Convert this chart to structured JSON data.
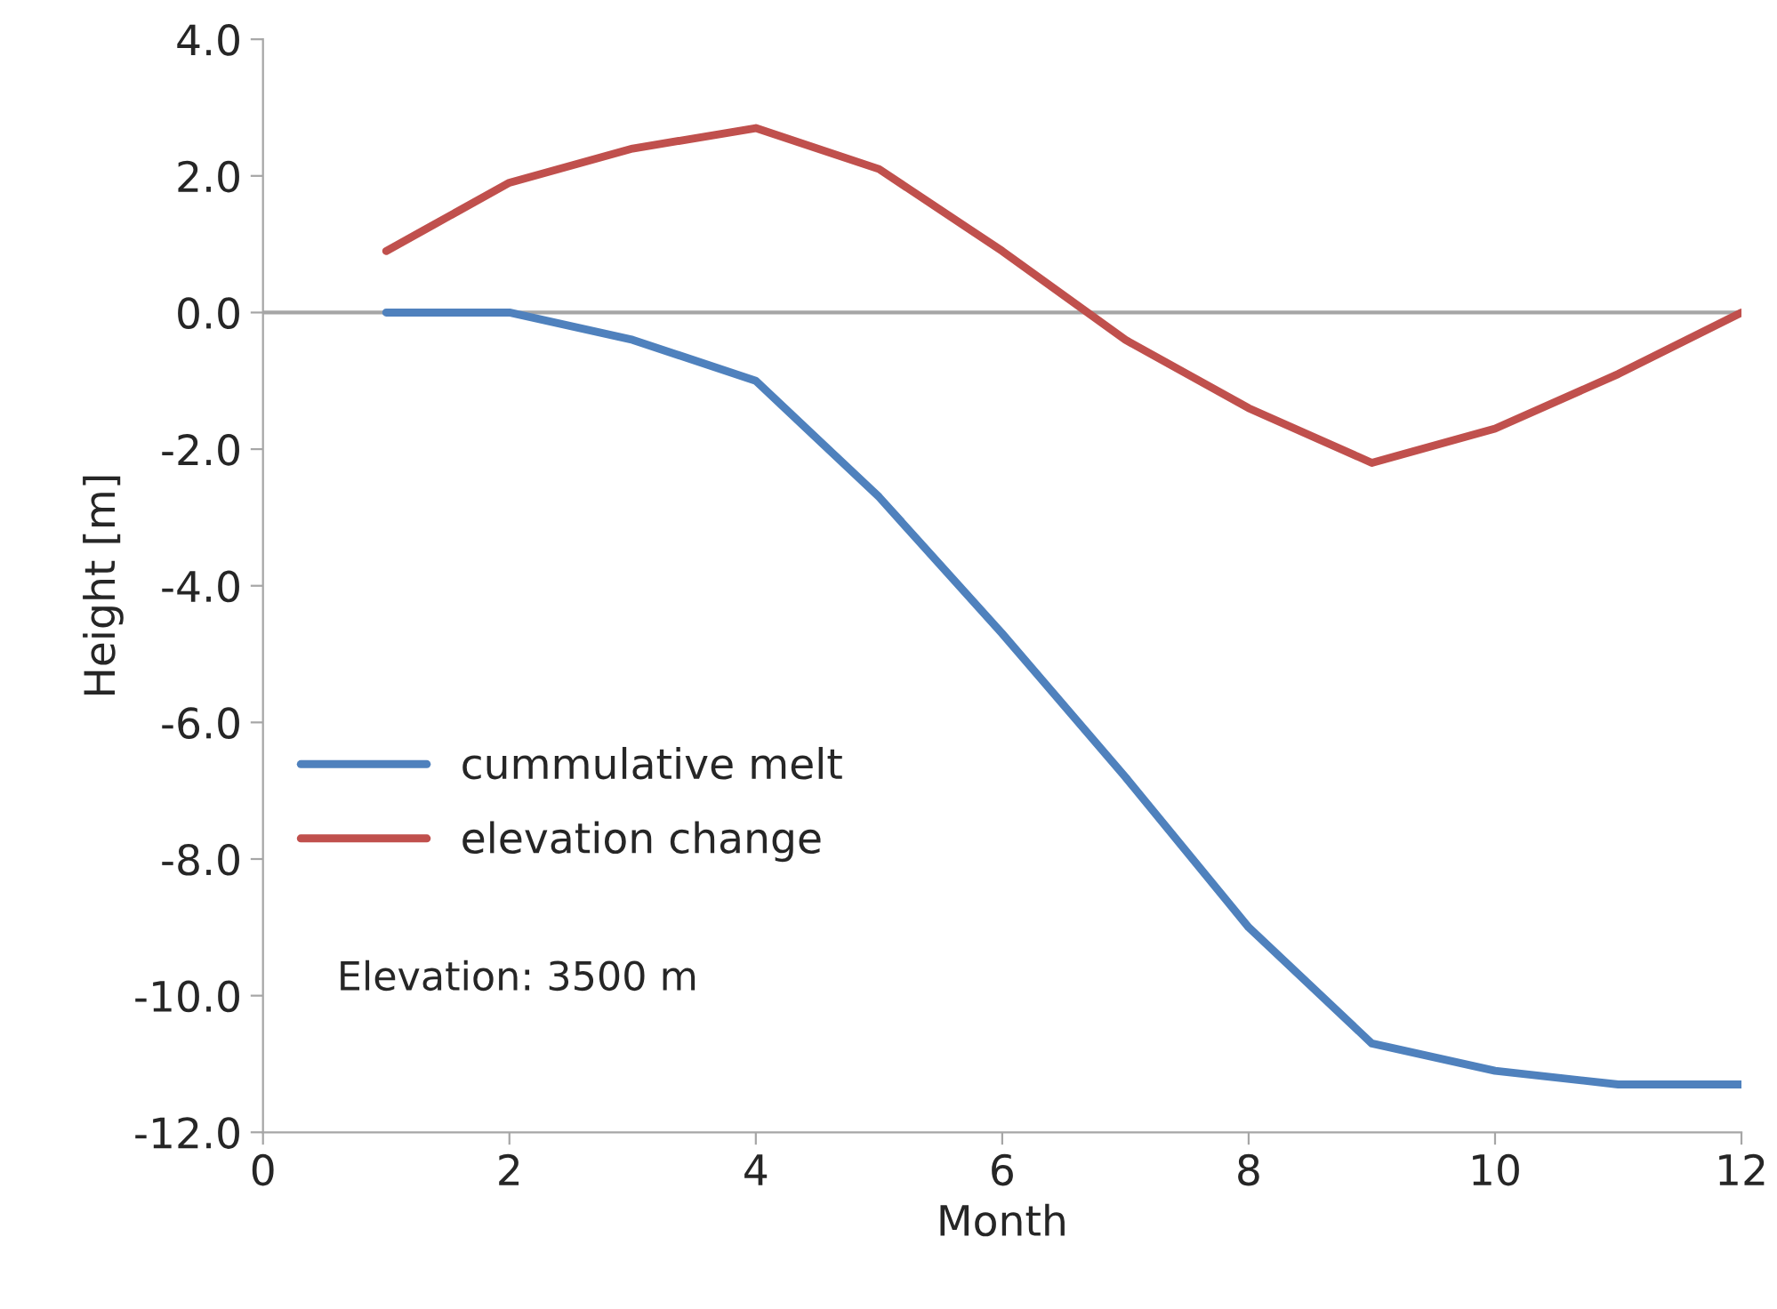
{
  "chart_data": {
    "type": "line",
    "xlabel": "Month",
    "ylabel": "Height [m]",
    "x": [
      1,
      2,
      3,
      4,
      5,
      6,
      7,
      8,
      9,
      10,
      11,
      12
    ],
    "series": [
      {
        "name": "cummulative melt",
        "color": "#4f81bd",
        "values": [
          0,
          0,
          -0.4,
          -1.0,
          -2.7,
          -4.7,
          -6.8,
          -9.0,
          -10.7,
          -11.1,
          -11.3,
          -11.3
        ]
      },
      {
        "name": "elevation change",
        "color": "#c0504d",
        "values": [
          0.9,
          1.9,
          2.4,
          2.7,
          2.1,
          0.9,
          -0.4,
          -1.4,
          -2.2,
          -1.7,
          -0.9,
          0
        ]
      }
    ],
    "xlim": [
      0,
      12
    ],
    "xticks": [
      0,
      2,
      4,
      6,
      8,
      10,
      12
    ],
    "ylim": [
      -12,
      4
    ],
    "yticks": [
      {
        "value": -12,
        "label": "-12.0"
      },
      {
        "value": -10,
        "label": "-10.0"
      },
      {
        "value": -8,
        "label": "-8.0"
      },
      {
        "value": -6,
        "label": "-6.0"
      },
      {
        "value": -4,
        "label": "-4.0"
      },
      {
        "value": -2,
        "label": "-2.0"
      },
      {
        "value": 0,
        "label": "0.0"
      },
      {
        "value": 2,
        "label": "2.0"
      },
      {
        "value": 4,
        "label": "4.0"
      }
    ],
    "ref_lines": [
      {
        "axis": "y",
        "value": 0,
        "color": "#a6a6a6"
      }
    ],
    "annotations": [
      "Elevation: 3500 m"
    ],
    "legend": "left",
    "grid": false,
    "marker": "none",
    "line_style": "solid"
  }
}
